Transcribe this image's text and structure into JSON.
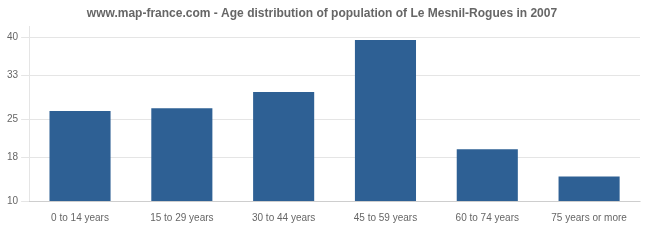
{
  "chart_data": {
    "type": "bar",
    "title": "www.map-france.com - Age distribution of population of Le Mesnil-Rogues in 2007",
    "categories": [
      "0 to 14 years",
      "15 to 29 years",
      "30 to 44 years",
      "45 to 59 years",
      "60 to 74 years",
      "75 years or more"
    ],
    "values": [
      26.5,
      27.0,
      30.0,
      39.5,
      19.5,
      14.5
    ],
    "color": "#2e6094",
    "ylim": [
      10,
      42
    ],
    "yticks": [
      10,
      18,
      25,
      33,
      40
    ],
    "grid": true
  }
}
